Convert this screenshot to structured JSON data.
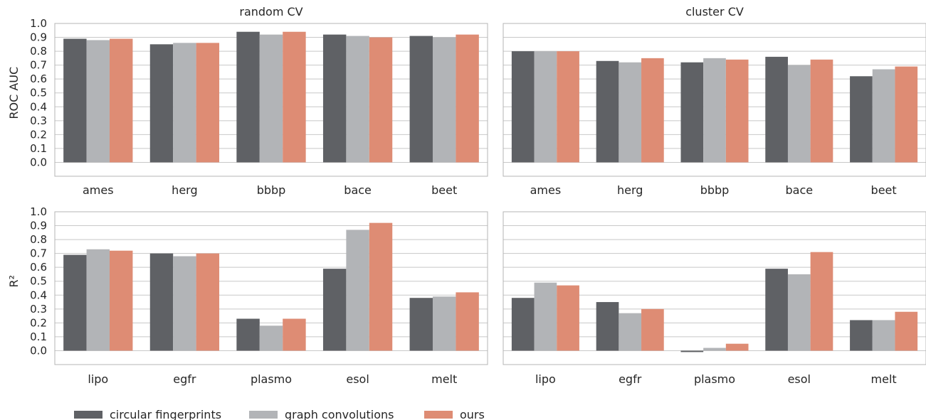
{
  "colors": {
    "circular fingerprints": "#5f6165",
    "graph convolutions": "#b2b4b7",
    "ours": "#de8c74",
    "grid": "#c8c8c8",
    "frame": "#b4b4b4"
  },
  "legend": [
    "circular fingerprints",
    "graph convolutions",
    "ours"
  ],
  "chart_data": [
    {
      "type": "bar",
      "title": "random CV",
      "ylabel": "ROC AUC",
      "ylim": [
        -0.1,
        1.0
      ],
      "yticks": [
        "0.0",
        "0.1",
        "0.2",
        "0.3",
        "0.4",
        "0.5",
        "0.6",
        "0.7",
        "0.8",
        "0.9",
        "1.0"
      ],
      "grid": true,
      "categories": [
        "ames",
        "herg",
        "bbbp",
        "bace",
        "beet"
      ],
      "series": [
        {
          "name": "circular fingerprints",
          "values": [
            0.89,
            0.85,
            0.94,
            0.92,
            0.91
          ]
        },
        {
          "name": "graph convolutions",
          "values": [
            0.88,
            0.86,
            0.92,
            0.91,
            0.9
          ]
        },
        {
          "name": "ours",
          "values": [
            0.89,
            0.86,
            0.94,
            0.9,
            0.92
          ]
        }
      ]
    },
    {
      "type": "bar",
      "title": "cluster CV",
      "ylabel": "",
      "ylim": [
        -0.1,
        1.0
      ],
      "yticks": [],
      "grid": true,
      "categories": [
        "ames",
        "herg",
        "bbbp",
        "bace",
        "beet"
      ],
      "series": [
        {
          "name": "circular fingerprints",
          "values": [
            0.8,
            0.73,
            0.72,
            0.76,
            0.62
          ]
        },
        {
          "name": "graph convolutions",
          "values": [
            0.8,
            0.72,
            0.75,
            0.7,
            0.67
          ]
        },
        {
          "name": "ours",
          "values": [
            0.8,
            0.75,
            0.74,
            0.74,
            0.69
          ]
        }
      ]
    },
    {
      "type": "bar",
      "title": "",
      "ylabel": "R²",
      "ylim": [
        -0.1,
        1.0
      ],
      "yticks": [
        "0.0",
        "0.1",
        "0.2",
        "0.3",
        "0.4",
        "0.5",
        "0.6",
        "0.7",
        "0.8",
        "0.9",
        "1.0"
      ],
      "grid": true,
      "categories": [
        "lipo",
        "egfr",
        "plasmo",
        "esol",
        "melt"
      ],
      "series": [
        {
          "name": "circular fingerprints",
          "values": [
            0.69,
            0.7,
            0.23,
            0.59,
            0.38
          ]
        },
        {
          "name": "graph convolutions",
          "values": [
            0.73,
            0.68,
            0.18,
            0.87,
            0.39
          ]
        },
        {
          "name": "ours",
          "values": [
            0.72,
            0.7,
            0.23,
            0.92,
            0.42
          ]
        }
      ]
    },
    {
      "type": "bar",
      "title": "",
      "ylabel": "",
      "ylim": [
        -0.1,
        1.0
      ],
      "yticks": [],
      "grid": true,
      "categories": [
        "lipo",
        "egfr",
        "plasmo",
        "esol",
        "melt"
      ],
      "series": [
        {
          "name": "circular fingerprints",
          "values": [
            0.38,
            0.35,
            -0.01,
            0.59,
            0.22
          ]
        },
        {
          "name": "graph convolutions",
          "values": [
            0.49,
            0.27,
            0.02,
            0.55,
            0.22
          ]
        },
        {
          "name": "ours",
          "values": [
            0.47,
            0.3,
            0.05,
            0.71,
            0.28
          ]
        }
      ]
    }
  ]
}
